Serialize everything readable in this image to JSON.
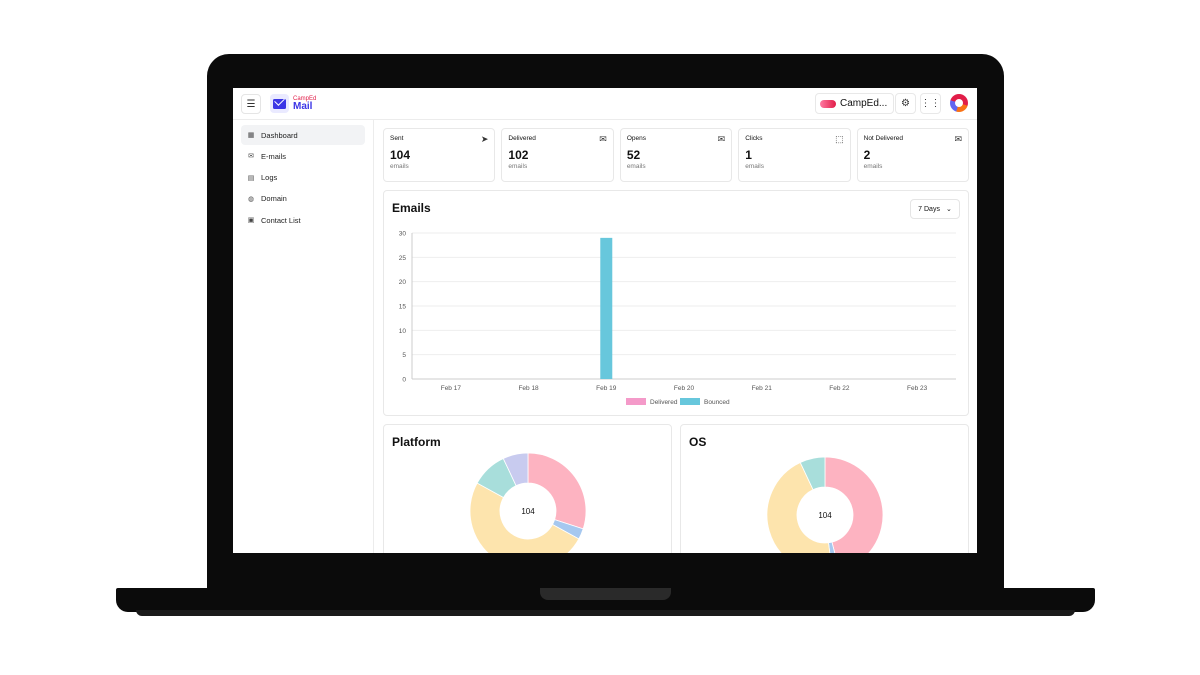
{
  "app": {
    "logo_small": "CampEd",
    "logo_main": "Mail"
  },
  "header": {
    "org_name": "CampEd...",
    "settings_icon": "gear-icon",
    "apps_icon": "grid-icon"
  },
  "sidebar": {
    "items": [
      {
        "label": "Dashboard",
        "icon": "dashboard-icon",
        "active": true
      },
      {
        "label": "E-mails",
        "icon": "mail-icon",
        "active": false
      },
      {
        "label": "Logs",
        "icon": "file-icon",
        "active": false
      },
      {
        "label": "Domain",
        "icon": "globe-icon",
        "active": false
      },
      {
        "label": "Contact List",
        "icon": "contact-icon",
        "active": false
      }
    ]
  },
  "stats": [
    {
      "label": "Sent",
      "value": "104",
      "unit": "emails",
      "icon": "send-icon"
    },
    {
      "label": "Delivered",
      "value": "102",
      "unit": "emails",
      "icon": "mail-icon"
    },
    {
      "label": "Opens",
      "value": "52",
      "unit": "emails",
      "icon": "mail-open-icon"
    },
    {
      "label": "Clicks",
      "value": "1",
      "unit": "emails",
      "icon": "cursor-click-icon"
    },
    {
      "label": "Not Delivered",
      "value": "2",
      "unit": "emails",
      "icon": "mail-x-icon"
    }
  ],
  "emails_panel": {
    "title": "Emails",
    "range": "7 Days"
  },
  "platform_panel": {
    "title": "Platform",
    "center": "104"
  },
  "os_panel": {
    "title": "OS",
    "center": "104"
  },
  "colors": {
    "delivered": "#f49ac9",
    "bounced": "#67c7dc",
    "pink": "#fdb3c1",
    "blue": "#a6c8ef",
    "yellow": "#fde4ad",
    "teal": "#a8dedb",
    "lavender": "#c8cbef"
  },
  "chart_data": [
    {
      "type": "bar",
      "categories": [
        "Feb 17",
        "Feb 18",
        "Feb 19",
        "Feb 20",
        "Feb 21",
        "Feb 22",
        "Feb 23"
      ],
      "series": [
        {
          "name": "Delivered",
          "values": [
            0,
            0,
            0,
            0,
            0,
            0,
            0
          ]
        },
        {
          "name": "Bounced",
          "values": [
            0,
            0,
            29,
            0,
            0,
            0,
            0
          ]
        }
      ],
      "title": "Emails",
      "ylim": [
        0,
        30
      ],
      "yticks": [
        0,
        5,
        10,
        15,
        20,
        25,
        30
      ],
      "grid": true,
      "legend": "bottom"
    },
    {
      "type": "pie",
      "title": "Platform",
      "center_label": "104",
      "values": [
        30,
        3,
        50,
        10,
        7
      ]
    },
    {
      "type": "pie",
      "title": "OS",
      "center_label": "104",
      "values": [
        46,
        2,
        45,
        7
      ]
    }
  ]
}
